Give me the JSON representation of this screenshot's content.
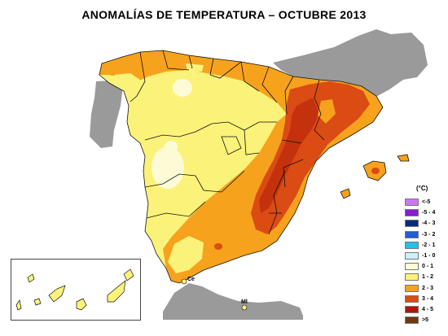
{
  "title": "ANOMALÍAS DE TEMPERATURA – OCTUBRE 2013",
  "legend": {
    "unit": "(°C)",
    "items": [
      {
        "label": "<-5",
        "color": "#cc77ee"
      },
      {
        "label": "-5 - 4",
        "color": "#8b1cc9"
      },
      {
        "label": "-4 - 3",
        "color": "#0b2a7a"
      },
      {
        "label": "-3 - 2",
        "color": "#1f5fd6"
      },
      {
        "label": "-2 - 1",
        "color": "#21c0ee"
      },
      {
        "label": "-1 - 0",
        "color": "#cfeefb"
      },
      {
        "label": "0 - 1",
        "color": "#fcfbd6"
      },
      {
        "label": "1 - 2",
        "color": "#fbf27a"
      },
      {
        "label": "2 - 3",
        "color": "#f6a21d"
      },
      {
        "label": "3 - 4",
        "color": "#db4b14"
      },
      {
        "label": "4 - 5",
        "color": "#b21508"
      },
      {
        "label": ">5",
        "color": "#6b3a0e"
      }
    ]
  },
  "cities": {
    "ceuta": "Ce",
    "melilla": "Ml"
  }
}
